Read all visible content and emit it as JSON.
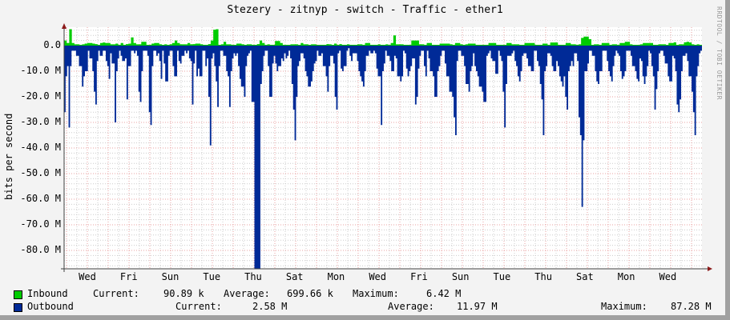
{
  "title": "Stezery - zitnyp - switch - Traffic - ether1",
  "watermark": "RRDTOOL / TOBI OETIKER",
  "colors": {
    "inbound": "#00cc00",
    "outbound": "#002a97",
    "background": "#f3f3f3",
    "plot_bg": "#ffffff",
    "grid_major": "#e8a0a0",
    "grid_minor": "#cccccc",
    "axis": "#404040",
    "arrow": "#8b1a1a"
  },
  "legend": {
    "inbound": {
      "name": "Inbound",
      "current_label": "Current:",
      "current": "90.89 k",
      "average_label": "Average:",
      "average": "699.66 k",
      "maximum_label": "Maximum:",
      "maximum": "6.42 M"
    },
    "outbound": {
      "name": "Outbound",
      "current_label": "Current:",
      "current": "2.58 M",
      "average_label": "Average:",
      "average": "11.97 M",
      "maximum_label": "Maximum:",
      "maximum": "87.28 M"
    }
  },
  "chart_data": {
    "type": "area",
    "title": "Stezery - zitnyp - switch - Traffic - ether1",
    "xlabel": "",
    "ylabel": "bits per second",
    "ylim": [
      -87.28,
      7
    ],
    "yticks": [
      "0.0",
      "-10.0 M",
      "-20.0 M",
      "-30.0 M",
      "-40.0 M",
      "-50.0 M",
      "-60.0 M",
      "-70.0 M",
      "-80.0 M"
    ],
    "ytick_values": [
      0,
      -10,
      -20,
      -30,
      -40,
      -50,
      -60,
      -70,
      -80
    ],
    "xticks": [
      "Wed",
      "Fri",
      "Sun",
      "Tue",
      "Thu",
      "Sat",
      "Mon",
      "Wed",
      "Fri",
      "Sun",
      "Tue",
      "Thu",
      "Sat",
      "Mon",
      "Wed"
    ],
    "grid": true,
    "legend_position": "bottom",
    "units": "M bits per second (outbound plotted negative)",
    "series": [
      {
        "name": "Inbound",
        "color": "#00cc00",
        "values": [
          2,
          1,
          6.4,
          1,
          0.5,
          0.5,
          0.3,
          0.5,
          0.8,
          1,
          1,
          0.8,
          0.6,
          0.3,
          1,
          1.2,
          1,
          1,
          0.5,
          0.5,
          0.8,
          0.3,
          1,
          0.3,
          0.6,
          0.8,
          3.2,
          1,
          0.5,
          0.5,
          1.5,
          1.5,
          0.3,
          0.3,
          0.8,
          1,
          1,
          0.5,
          0.3,
          0.5,
          0.3,
          0.5,
          1,
          2,
          1,
          0.5,
          0.5,
          0.5,
          1,
          0.5,
          0.6,
          0.8,
          0.8,
          0.5,
          0.3,
          0.3,
          0.6,
          2,
          6.2,
          6.4,
          0.3,
          0.5,
          1.5,
          0.5,
          0.5,
          0.3,
          0.3,
          0.8,
          0.8,
          0.5,
          0.3,
          0.5,
          0.5,
          0.3,
          0.3,
          0.6,
          2,
          1,
          0.3,
          0.5,
          0.3,
          0.3,
          1.8,
          1.8,
          1,
          0.3,
          0.3,
          0.3,
          0.5,
          0.5,
          0.5,
          0.3,
          1,
          0.5,
          0.5,
          0.3,
          0.5,
          0.5,
          0.3,
          0.3,
          0.3,
          0.3,
          0.6,
          0.5,
          0.3,
          0.8,
          0.3,
          0.6,
          0.3,
          0.3,
          0.5,
          0.3,
          0.3,
          0.3,
          0.5,
          0.5,
          0.3,
          1,
          1,
          0.3,
          0.3,
          0.3,
          0.5,
          0.3,
          0.3,
          0.5,
          0.3,
          1,
          4,
          0.5,
          0.5,
          0.5,
          0.3,
          0.3,
          0.3,
          2,
          2,
          2,
          0.5,
          0.5,
          0.3,
          1,
          1,
          0.3,
          0.3,
          0.3,
          0.8,
          0.8,
          0.8,
          0.8,
          0.5,
          0.3,
          1,
          1,
          0.5,
          0.3,
          0.5,
          0.8,
          0.8,
          0.8,
          0.3,
          0.3,
          0.3,
          0.3,
          0.3,
          1,
          1,
          1,
          0.3,
          0.3,
          0.3,
          0.3,
          1,
          1,
          0.5,
          0.5,
          0.5,
          0.3,
          0.3,
          1,
          1,
          1,
          1,
          0.3,
          0.3,
          0.3,
          0.8,
          0.8,
          0.3,
          1.2,
          1.2,
          1.2,
          0.3,
          0.3,
          0.3,
          1,
          1,
          0.5,
          0.5,
          0.3,
          0.5,
          3,
          3.5,
          3.5,
          2.5,
          0.3,
          0.5,
          0.5,
          0.3,
          1,
          1,
          1,
          0.3,
          0.5,
          0.5,
          0.3,
          1,
          1,
          1.5,
          1.5,
          0.5,
          0.3,
          0.3,
          0.3,
          0.5,
          1,
          1,
          1,
          1,
          0.3,
          0.3,
          0.5,
          0.5,
          0.5,
          0.3,
          1,
          1,
          1.3,
          0.3,
          0.5,
          0.5,
          1.3,
          1.5,
          1.2,
          0.5,
          0.3,
          0.5,
          0.3
        ],
        "description": "Small positive inbound traffic near 0-1 M with spikes to ~6.4 M around the first Wed and the first Thu"
      },
      {
        "name": "Outbound",
        "color": "#002a97",
        "values": [
          -26,
          -12,
          -8,
          -32,
          -8,
          -2,
          -2,
          -2,
          -4,
          -4,
          -8,
          -8,
          -16,
          -12,
          -10,
          -10,
          -2,
          -5,
          -5,
          -10,
          -18,
          -23,
          -6,
          -2,
          -4,
          -4,
          -2,
          -2,
          -6,
          -8,
          -13,
          -3,
          -7,
          -7,
          -30,
          -10,
          -5,
          -2,
          -4,
          -6,
          -6,
          -5,
          -21,
          -8,
          -8,
          -2,
          -2,
          -3,
          -2,
          -4,
          -18,
          -22,
          -10,
          -2,
          -2,
          -2,
          -4,
          -26,
          -31,
          -8,
          -2,
          -2,
          -4,
          -3,
          -6,
          -13,
          -2,
          -7,
          -14,
          -14,
          -4,
          -2,
          -2,
          -8,
          -12,
          -12,
          -2,
          -6,
          -7,
          -4,
          -4,
          -2,
          -3,
          -2,
          -5,
          -6,
          -23,
          -7,
          -2,
          -12,
          -9,
          -12,
          -12,
          -2,
          -2,
          -8,
          -5,
          -20,
          -39,
          -5,
          -3,
          -8,
          -14,
          -24,
          -8,
          -2,
          -2,
          -4,
          -4,
          -10,
          -12,
          -24,
          -10,
          -5,
          -3,
          -4,
          -3,
          -8,
          -13,
          -16,
          -16,
          -20,
          -8,
          -4,
          -3,
          -2,
          -22,
          -22,
          -88,
          -88,
          -88,
          -88,
          -15,
          -10,
          -4,
          -2,
          -2,
          -8,
          -20,
          -20,
          -7,
          -4,
          -7,
          -10,
          -8,
          -8,
          -5,
          -6,
          -3,
          -5,
          -4,
          -2,
          -5,
          -15,
          -25,
          -37,
          -20,
          -8,
          -6,
          -3,
          -3,
          -5,
          -10,
          -12,
          -16,
          -16,
          -14,
          -10,
          -7,
          -6,
          -2,
          -4,
          -4,
          -3,
          -8,
          -8,
          -12,
          -18,
          -8,
          -4,
          -4,
          -7,
          -20,
          -25,
          -3,
          -2,
          -9,
          -10,
          -8,
          -8,
          -2,
          -1,
          -4,
          -6,
          -3,
          -3,
          -3,
          -6,
          -10,
          -12,
          -14,
          -16,
          -10,
          -4,
          -4,
          -2,
          -3,
          -3,
          -2,
          -3,
          -9,
          -12,
          -12,
          -31,
          -10,
          -7,
          -2,
          -4,
          -4,
          -6,
          -10,
          -10,
          -4,
          -5,
          -12,
          -12,
          -14,
          -12,
          -2,
          -3,
          -9,
          -12,
          -10,
          -8,
          -5,
          -5,
          -23,
          -20,
          -9,
          -4,
          -2,
          -2,
          -8,
          -12,
          -2,
          -5,
          -10,
          -10,
          -12,
          -20,
          -20,
          -10,
          -8,
          -4,
          -2,
          -2,
          -7,
          -12,
          -12,
          -18,
          -18,
          -20,
          -28,
          -35,
          -6,
          -2,
          -2,
          -4,
          -4,
          -8,
          -15,
          -15,
          -18,
          -10,
          -8,
          -3,
          -8,
          -10,
          -12,
          -16,
          -16,
          -18,
          -22,
          -22,
          -4,
          -3,
          -2,
          -5,
          -6,
          -6,
          -11,
          -11,
          -2,
          -4,
          -6,
          -18,
          -32,
          -15,
          -4,
          -4,
          -4,
          -3,
          -2,
          -6,
          -8,
          -12,
          -14,
          -10,
          -4,
          -3,
          -3,
          -5,
          -8,
          -8,
          -10,
          -10,
          -2,
          -2,
          -6,
          -8,
          -15,
          -21,
          -35,
          -10,
          -8,
          -3,
          -3,
          -4,
          -8,
          -10,
          -10,
          -6,
          -8,
          -12,
          -14,
          -16,
          -12,
          -20,
          -25,
          -10,
          -8,
          -6,
          -8,
          -3,
          -3,
          -6,
          -28,
          -35,
          -63,
          -37,
          -10,
          -10,
          -7,
          -2,
          -2,
          -4,
          -4,
          -10,
          -14,
          -15,
          -10,
          -10,
          -2,
          -2,
          -2,
          -6,
          -10,
          -12,
          -14,
          -8,
          -4,
          -2,
          -3,
          -4,
          -10,
          -13,
          -12,
          -10,
          -2,
          -2,
          -2,
          -4,
          -8,
          -8,
          -10,
          -13,
          -14,
          -5,
          -6,
          -12,
          -15,
          -12,
          -8,
          -2,
          -3,
          -8,
          -12,
          -25,
          -17,
          -10,
          -3,
          -2,
          -2,
          -4,
          -7,
          -7,
          -12,
          -14,
          -14,
          -4,
          -5,
          -10,
          -23,
          -26,
          -21,
          -10,
          -4,
          -4,
          -3,
          -6,
          -12,
          -12,
          -18,
          -26,
          -35,
          -12,
          -8,
          -3,
          -2
        ],
        "description": "Outbound traffic plotted negative; typical 2-20 M, daily spikes to ~30-40 M, peak ~87 M around first Thu, ~63 M around second Sat"
      }
    ]
  }
}
